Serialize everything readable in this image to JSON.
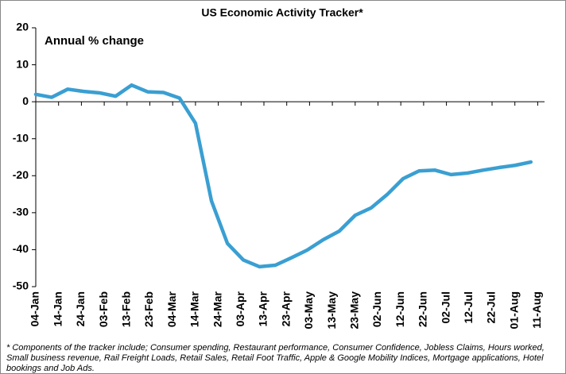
{
  "chart_data": {
    "type": "line",
    "title": "US Economic Activity Tracker*",
    "annotation": "Annual % change",
    "footnote": "* Components of the tracker include; Consumer spending, Restaurant performance, Consumer Confidence, Jobless Claims, Hours worked, Small business revenue, Rail Freight Loads, Retail Sales, Retail Foot Traffic, Apple & Google Mobility Indices, Mortgage applications, Hotel bookings and Job Ads.",
    "x": [
      "04-Jan",
      "11-Jan",
      "18-Jan",
      "25-Jan",
      "01-Feb",
      "08-Feb",
      "15-Feb",
      "22-Feb",
      "29-Feb",
      "07-Mar",
      "14-Mar",
      "21-Mar",
      "28-Mar",
      "04-Apr",
      "11-Apr",
      "18-Apr",
      "25-Apr",
      "02-May",
      "09-May",
      "16-May",
      "23-May",
      "30-May",
      "06-Jun",
      "13-Jun",
      "20-Jun",
      "27-Jun",
      "04-Jul",
      "11-Jul",
      "18-Jul",
      "25-Jul",
      "01-Aug",
      "08-Aug"
    ],
    "series": [
      {
        "name": "US Economic Activity Tracker",
        "color": "#3a9fd2",
        "values": [
          2.0,
          1.2,
          3.4,
          2.8,
          2.4,
          1.5,
          4.5,
          2.7,
          2.5,
          1.0,
          -5.8,
          -26.8,
          -38.3,
          -42.8,
          -44.6,
          -44.2,
          -42.2,
          -40.1,
          -37.3,
          -35.0,
          -30.7,
          -28.7,
          -25.1,
          -20.8,
          -18.7,
          -18.5,
          -19.7,
          -19.3,
          -18.5,
          -17.8,
          -17.2,
          -16.3
        ]
      }
    ],
    "xlim": [
      "04-Jan",
      "14-Aug"
    ],
    "xticks": [
      "04-Jan",
      "14-Jan",
      "24-Jan",
      "03-Feb",
      "13-Feb",
      "23-Feb",
      "04-Mar",
      "14-Mar",
      "24-Mar",
      "03-Apr",
      "13-Apr",
      "23-Apr",
      "03-May",
      "13-May",
      "23-May",
      "02-Jun",
      "12-Jun",
      "22-Jun",
      "02-Jul",
      "12-Jul",
      "22-Jul",
      "01-Aug",
      "11-Aug"
    ],
    "ylim": [
      -50,
      20
    ],
    "yticks": [
      -50,
      -40,
      -30,
      -20,
      -10,
      0,
      10,
      20
    ],
    "grid": false
  }
}
